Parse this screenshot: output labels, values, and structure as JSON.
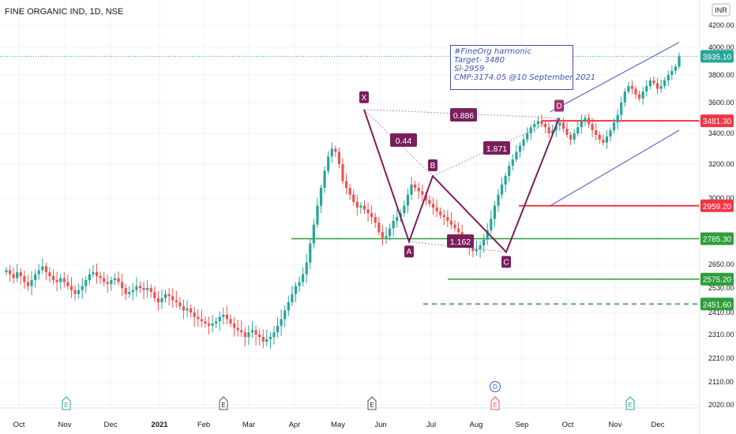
{
  "header": {
    "title": "FINE ORGANIC IND, 1D, NSE",
    "currency": "INR"
  },
  "annotation": {
    "lines": [
      "#FineOrg harmonic",
      "Target- 3480",
      "Sl-2959",
      "CMP:3174.05 @10 September 2021"
    ]
  },
  "colors": {
    "up": "#26a69a",
    "down": "#ef5350",
    "pattern": "#7b1f5c",
    "support": "#2e9e3a",
    "resistance": "#f23645",
    "channel": "#3f51b5"
  },
  "chart_data": {
    "type": "candlestick",
    "title": "FINE ORGANIC IND, 1D, NSE",
    "y_axis": {
      "position": "right",
      "ylim": [
        2000,
        4300
      ],
      "ticks": [
        4200,
        4000,
        3800,
        3600,
        3400,
        3200,
        3000,
        2650,
        2530,
        2410,
        2310,
        2210,
        2110,
        2020
      ],
      "tick_labels": [
        "4200.00",
        "4000.00",
        "3800.00",
        "3600.00",
        "3400.00",
        "3200.00",
        "3000.00",
        "2650.00",
        "2530.00",
        "2410.00",
        "2310.00",
        "2210.00",
        "2110.00",
        "2020.00"
      ]
    },
    "x_axis": {
      "labels": [
        "Oct",
        "Nov",
        "Dec",
        "2021",
        "Feb",
        "Mar",
        "Apr",
        "May",
        "Jun",
        "Jul",
        "Aug",
        "Sep",
        "Oct",
        "Nov",
        "Dec"
      ]
    },
    "price_tags": [
      {
        "value": "3935.10",
        "price": 3935.1,
        "style": "last"
      },
      {
        "value": "3481.30",
        "price": 3481.3,
        "style": "resistance"
      },
      {
        "value": "2959.20",
        "price": 2959.2,
        "style": "resistance"
      },
      {
        "value": "2785.30",
        "price": 2785.3,
        "style": "support"
      },
      {
        "value": "2575.20",
        "price": 2575.2,
        "style": "support"
      },
      {
        "value": "2451.60",
        "price": 2451.6,
        "style": "support"
      }
    ],
    "harmonic_pattern": {
      "points": [
        {
          "label": "X",
          "month": "May",
          "price": 3555
        },
        {
          "label": "A",
          "month": "Jun",
          "price": 2770
        },
        {
          "label": "B",
          "month": "Jul",
          "price": 3130
        },
        {
          "label": "C",
          "month": "Aug",
          "price": 2715
        },
        {
          "label": "D",
          "month": "Oct",
          "price": 3500
        }
      ],
      "ratios": [
        "0.886",
        "0.44",
        "1.871",
        "1.162"
      ]
    },
    "events": [
      {
        "marker": "E",
        "kind": "earnings"
      },
      {
        "marker": "E",
        "kind": "earnings"
      },
      {
        "marker": "E",
        "kind": "earnings"
      },
      {
        "marker": "D",
        "kind": "dividend"
      },
      {
        "marker": "E",
        "kind": "earnings-upcoming"
      },
      {
        "marker": "E",
        "kind": "earnings"
      }
    ],
    "approx_closes": [
      2620,
      2600,
      2580,
      2610,
      2590,
      2560,
      2540,
      2570,
      2600,
      2620,
      2640,
      2610,
      2590,
      2570,
      2560,
      2580,
      2560,
      2540,
      2520,
      2500,
      2520,
      2540,
      2570,
      2600,
      2610,
      2590,
      2580,
      2560,
      2550,
      2570,
      2580,
      2560,
      2530,
      2500,
      2510,
      2520,
      2540,
      2530,
      2520,
      2530,
      2510,
      2480,
      2460,
      2480,
      2500,
      2490,
      2470,
      2460,
      2440,
      2420,
      2430,
      2410,
      2390,
      2380,
      2370,
      2360,
      2350,
      2360,
      2370,
      2390,
      2400,
      2380,
      2360,
      2340,
      2330,
      2320,
      2300,
      2320,
      2330,
      2310,
      2300,
      2280,
      2290,
      2300,
      2320,
      2350,
      2380,
      2420,
      2460,
      2500,
      2540,
      2560,
      2600,
      2660,
      2760,
      2860,
      2960,
      3060,
      3160,
      3250,
      3300,
      3280,
      3200,
      3100,
      3060,
      3020,
      2980,
      2950,
      2960,
      2940,
      2920,
      2900,
      2870,
      2820,
      2790,
      2800,
      2840,
      2880,
      2900,
      2920,
      2960,
      3020,
      3080,
      3060,
      3040,
      3020,
      2990,
      2970,
      2950,
      2930,
      2910,
      2900,
      2880,
      2860,
      2840,
      2820,
      2790,
      2760,
      2740,
      2720,
      2730,
      2750,
      2780,
      2830,
      2890,
      2960,
      3020,
      3080,
      3130,
      3190,
      3230,
      3280,
      3320,
      3360,
      3400,
      3440,
      3460,
      3480,
      3460,
      3440,
      3400,
      3420,
      3450,
      3470,
      3430,
      3390,
      3360,
      3400,
      3440,
      3480,
      3500,
      3460,
      3420,
      3390,
      3360,
      3340,
      3380,
      3420,
      3470,
      3520,
      3600,
      3680,
      3720,
      3700,
      3660,
      3630,
      3680,
      3720,
      3760,
      3740,
      3700,
      3720,
      3760,
      3800,
      3830,
      3860,
      3935.1
    ]
  }
}
